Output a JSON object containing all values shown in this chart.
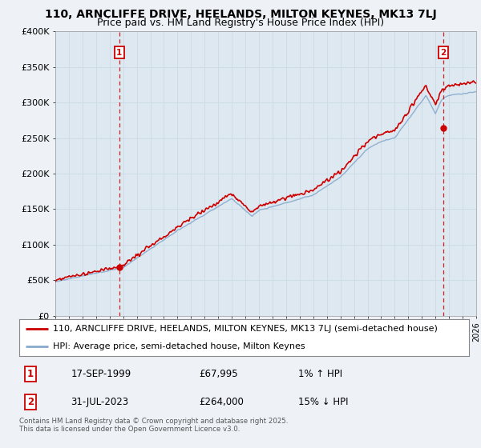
{
  "title": "110, ARNCLIFFE DRIVE, HEELANDS, MILTON KEYNES, MK13 7LJ",
  "subtitle": "Price paid vs. HM Land Registry's House Price Index (HPI)",
  "ylabel_ticks": [
    "£0",
    "£50K",
    "£100K",
    "£150K",
    "£200K",
    "£250K",
    "£300K",
    "£350K",
    "£400K"
  ],
  "ylim": [
    0,
    400000
  ],
  "xlim_start": 1995.0,
  "xlim_end": 2026.0,
  "purchase1_x": 1999.72,
  "purchase1_y": 67995,
  "purchase2_x": 2023.58,
  "purchase2_y": 264000,
  "purchase1_label": "1",
  "purchase2_label": "2",
  "property_line_color": "#cc0000",
  "hpi_line_color": "#88aacc",
  "grid_color": "#ccdde8",
  "background_color": "#eef2f7",
  "plot_bg_color": "#dde8f0",
  "legend_line1": "110, ARNCLIFFE DRIVE, HEELANDS, MILTON KEYNES, MK13 7LJ (semi-detached house)",
  "legend_line2": "HPI: Average price, semi-detached house, Milton Keynes",
  "table_row1": [
    "1",
    "17-SEP-1999",
    "£67,995",
    "1% ↑ HPI"
  ],
  "table_row2": [
    "2",
    "31-JUL-2023",
    "£264,000",
    "15% ↓ HPI"
  ],
  "footnote": "Contains HM Land Registry data © Crown copyright and database right 2025.\nThis data is licensed under the Open Government Licence v3.0.",
  "title_fontsize": 10,
  "subtitle_fontsize": 9,
  "tick_fontsize": 8,
  "legend_fontsize": 8
}
